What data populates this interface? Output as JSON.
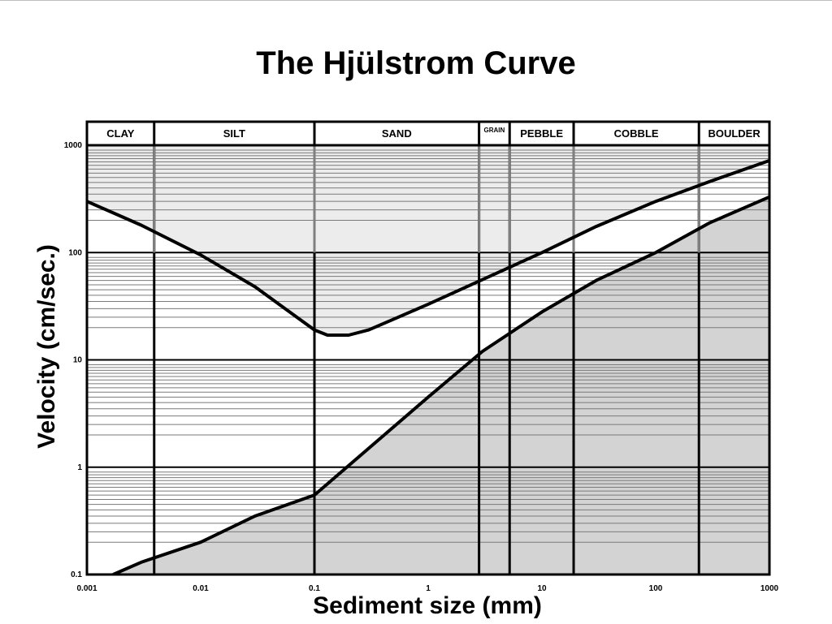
{
  "chart_data": {
    "type": "line",
    "title": "The Hjülstrom Curve",
    "xlabel": "Sediment size (mm)",
    "ylabel": "Velocity (cm/sec.)",
    "x_scale": "log",
    "y_scale": "log",
    "xlim": [
      0.001,
      1000
    ],
    "ylim": [
      0.1,
      1000
    ],
    "x_ticks": [
      {
        "value": 0.001,
        "label": "0.001"
      },
      {
        "value": 0.01,
        "label": "0.01"
      },
      {
        "value": 0.1,
        "label": "0.1"
      },
      {
        "value": 1,
        "label": "1"
      },
      {
        "value": 10,
        "label": "10"
      },
      {
        "value": 100,
        "label": "100"
      },
      {
        "value": 1000,
        "label": "1000"
      }
    ],
    "y_ticks": [
      {
        "value": 0.1,
        "label": "0.1"
      },
      {
        "value": 1,
        "label": "1"
      },
      {
        "value": 10,
        "label": "10"
      },
      {
        "value": 100,
        "label": "100"
      },
      {
        "value": 1000,
        "label": "1000"
      }
    ],
    "grid": true,
    "size_classes": [
      {
        "label": "CLAY",
        "from": 0.001,
        "to": 0.0039
      },
      {
        "label": "SILT",
        "from": 0.0039,
        "to": 0.1
      },
      {
        "label": "SAND",
        "from": 0.1,
        "to": 2.8
      },
      {
        "label": "GRAIN",
        "from": 2.8,
        "to": 5.2
      },
      {
        "label": "PEBBLE",
        "from": 5.2,
        "to": 19
      },
      {
        "label": "COBBLE",
        "from": 19,
        "to": 240
      },
      {
        "label": "BOULDER",
        "from": 240,
        "to": 1000
      }
    ],
    "series": [
      {
        "x": [
          0.001,
          0.003,
          0.01,
          0.03,
          0.07,
          0.1,
          0.13,
          0.2,
          0.3,
          0.5,
          1,
          3,
          10,
          30,
          100,
          300,
          1000
        ],
        "y": [
          300,
          180,
          95,
          48,
          25,
          19,
          17,
          17,
          19,
          24,
          33,
          56,
          100,
          175,
          300,
          460,
          720
        ]
      },
      {
        "x": [
          0.0017,
          0.003,
          0.01,
          0.03,
          0.1,
          0.3,
          1,
          3,
          10,
          30,
          100,
          300,
          1000
        ],
        "y": [
          0.1,
          0.13,
          0.2,
          0.35,
          0.55,
          1.5,
          4.5,
          12,
          28,
          55,
          100,
          190,
          330
        ]
      }
    ],
    "regions": {
      "upper_fill": "#ececec",
      "lower_fill": "#d3d3d3"
    }
  }
}
